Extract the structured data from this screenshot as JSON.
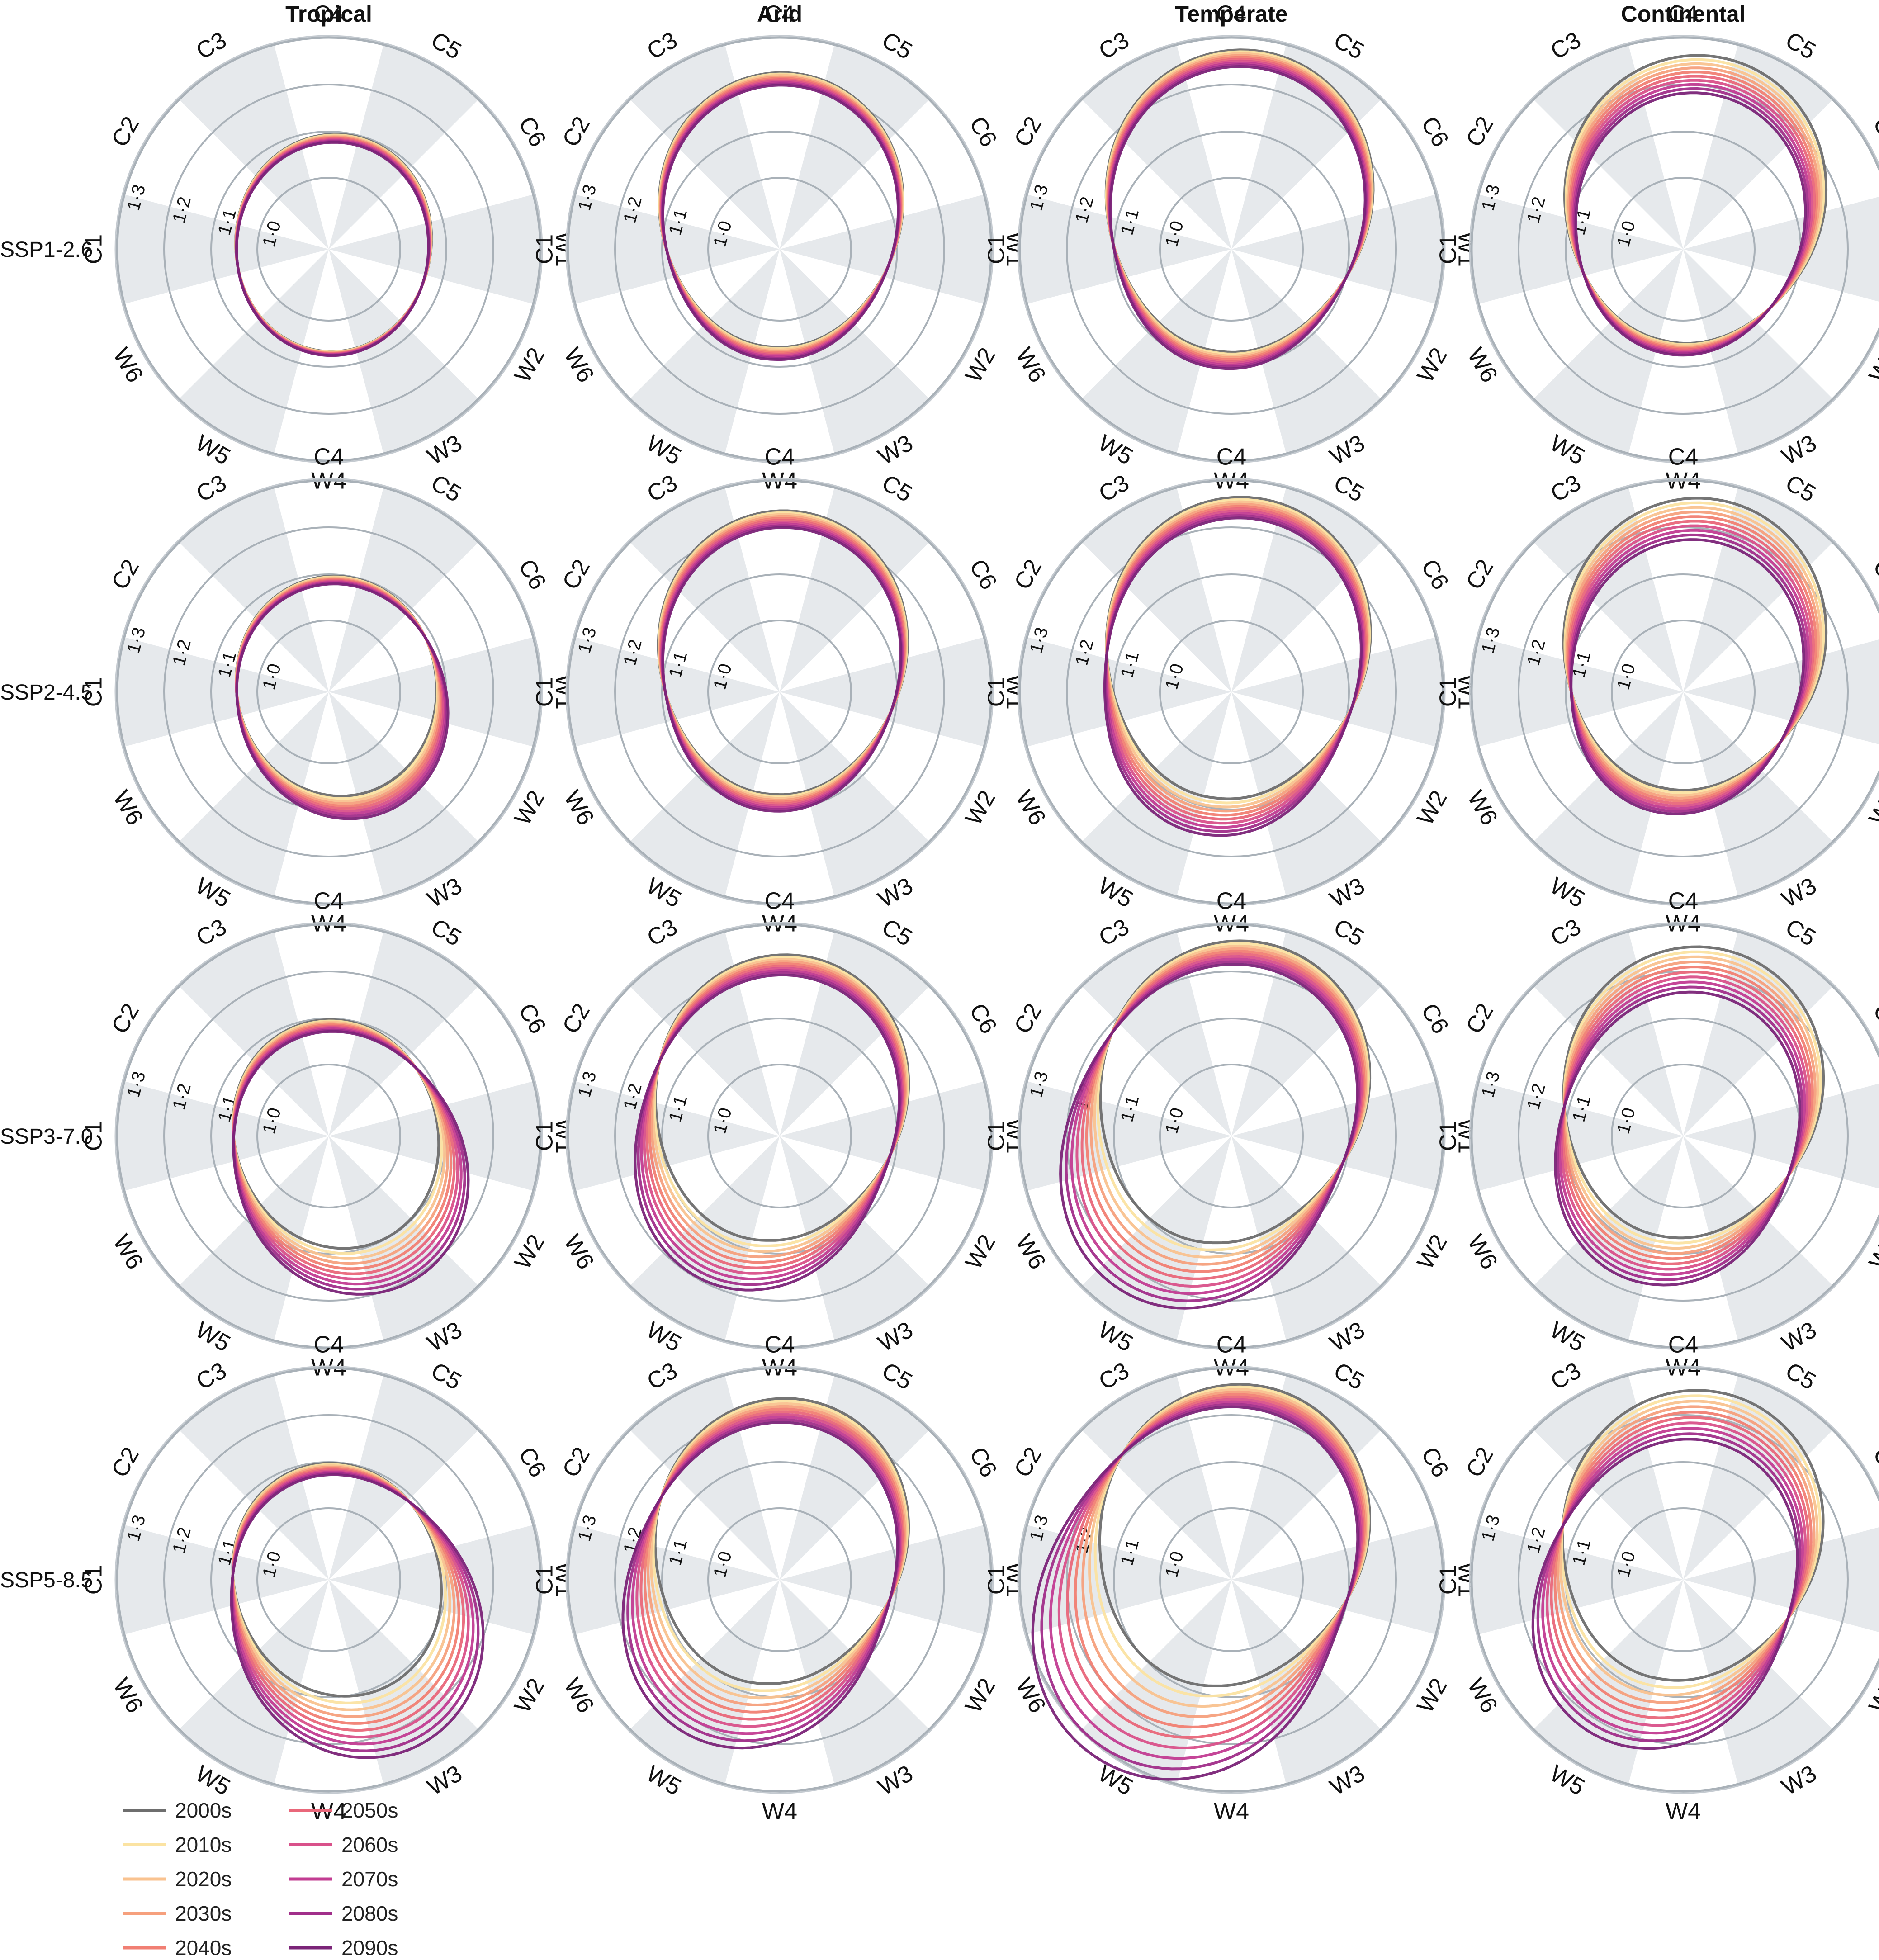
{
  "chart_data": {
    "type": "radar",
    "description_axis": "Cold (C1–C6) and warm (W1–W6) temperature bins; radial axis = relative risk",
    "col_titles": [
      "Tropical",
      "Arid",
      "Temperate",
      "Continental"
    ],
    "row_titles": [
      "SSP1-2.6",
      "SSP2-4.5",
      "SSP3-7.0",
      "SSP5-8.5"
    ],
    "spokes": [
      "C1",
      "C2",
      "C3",
      "C4",
      "C5",
      "C6",
      "W1",
      "W2",
      "W3",
      "W4",
      "W5",
      "W6"
    ],
    "ring_labels": [
      "1·0",
      "1·1",
      "1·2",
      "1·3"
    ],
    "rlim": [
      0.95,
      1.35
    ],
    "grid": true,
    "decades": [
      "2000s",
      "2010s",
      "2020s",
      "2030s",
      "2040s",
      "2050s",
      "2060s",
      "2070s",
      "2080s",
      "2090s"
    ],
    "colors": [
      "#6e6e6e",
      "#fbe3a2",
      "#f9c28f",
      "#f6a07d",
      "#f17f73",
      "#e9677a",
      "#d9518a",
      "#c23c92",
      "#a12e8a",
      "#7b2478"
    ],
    "legend_position": "bottom-left",
    "panels": [
      {
        "climate": "Tropical",
        "scenario": "SSP1-2.6",
        "shape": {
          "cold_peak": 1.07,
          "warm_peak": 1.04,
          "cold_dir": 75,
          "warm_dir": 275,
          "cold_trend": -0.002,
          "warm_trend": 0.001
        }
      },
      {
        "climate": "Arid",
        "scenario": "SSP1-2.6",
        "shape": {
          "cold_peak": 1.2,
          "warm_peak": 1.03,
          "cold_dir": 88,
          "warm_dir": 265,
          "cold_trend": -0.003,
          "warm_trend": 0.003
        }
      },
      {
        "climate": "Temperate",
        "scenario": "SSP1-2.6",
        "shape": {
          "cold_peak": 1.25,
          "warm_peak": 1.04,
          "cold_dir": 82,
          "warm_dir": 262,
          "cold_trend": -0.004,
          "warm_trend": 0.004
        }
      },
      {
        "climate": "Continental",
        "scenario": "SSP1-2.6",
        "shape": {
          "cold_peak": 1.24,
          "warm_peak": 1.02,
          "cold_dir": 78,
          "warm_dir": 262,
          "cold_trend": -0.009,
          "warm_trend": 0.003
        }
      },
      {
        "climate": "Tropical",
        "scenario": "SSP2-4.5",
        "shape": {
          "cold_peak": 1.07,
          "warm_peak": 1.05,
          "cold_dir": 80,
          "warm_dir": 300,
          "cold_trend": -0.002,
          "warm_trend": 0.006
        }
      },
      {
        "climate": "Arid",
        "scenario": "SSP2-4.5",
        "shape": {
          "cold_peak": 1.21,
          "warm_peak": 1.04,
          "cold_dir": 86,
          "warm_dir": 265,
          "cold_trend": -0.004,
          "warm_trend": 0.004
        }
      },
      {
        "climate": "Temperate",
        "scenario": "SSP2-4.5",
        "shape": {
          "cold_peak": 1.24,
          "warm_peak": 1.05,
          "cold_dir": 82,
          "warm_dir": 255,
          "cold_trend": -0.005,
          "warm_trend": 0.009
        }
      },
      {
        "climate": "Continental",
        "scenario": "SSP2-4.5",
        "shape": {
          "cold_peak": 1.24,
          "warm_peak": 1.03,
          "cold_dir": 78,
          "warm_dir": 255,
          "cold_trend": -0.01,
          "warm_trend": 0.006
        }
      },
      {
        "climate": "Tropical",
        "scenario": "SSP3-7.0",
        "shape": {
          "cold_peak": 1.07,
          "warm_peak": 1.07,
          "cold_dir": 90,
          "warm_dir": 300,
          "cold_trend": -0.003,
          "warm_trend": 0.012
        }
      },
      {
        "climate": "Arid",
        "scenario": "SSP3-7.0",
        "shape": {
          "cold_peak": 1.21,
          "warm_peak": 1.05,
          "cold_dir": 84,
          "warm_dir": 240,
          "cold_trend": -0.005,
          "warm_trend": 0.013
        }
      },
      {
        "climate": "Temperate",
        "scenario": "SSP3-7.0",
        "shape": {
          "cold_peak": 1.24,
          "warm_peak": 1.06,
          "cold_dir": 82,
          "warm_dir": 232,
          "cold_trend": -0.006,
          "warm_trend": 0.018
        }
      },
      {
        "climate": "Continental",
        "scenario": "SSP3-7.0",
        "shape": {
          "cold_peak": 1.23,
          "warm_peak": 1.04,
          "cold_dir": 78,
          "warm_dir": 248,
          "cold_trend": -0.011,
          "warm_trend": 0.012
        }
      },
      {
        "climate": "Tropical",
        "scenario": "SSP5-8.5",
        "shape": {
          "cold_peak": 1.07,
          "warm_peak": 1.08,
          "cold_dir": 90,
          "warm_dir": 300,
          "cold_trend": -0.003,
          "warm_trend": 0.016
        }
      },
      {
        "climate": "Arid",
        "scenario": "SSP5-8.5",
        "shape": {
          "cold_peak": 1.21,
          "warm_peak": 1.05,
          "cold_dir": 84,
          "warm_dir": 238,
          "cold_trend": -0.006,
          "warm_trend": 0.017
        }
      },
      {
        "climate": "Temperate",
        "scenario": "SSP5-8.5",
        "shape": {
          "cold_peak": 1.24,
          "warm_peak": 1.06,
          "cold_dir": 82,
          "warm_dir": 230,
          "cold_trend": -0.006,
          "warm_trend": 0.026
        }
      },
      {
        "climate": "Continental",
        "scenario": "SSP5-8.5",
        "shape": {
          "cold_peak": 1.23,
          "warm_peak": 1.04,
          "cold_dir": 78,
          "warm_dir": 240,
          "cold_trend": -0.012,
          "warm_trend": 0.018
        }
      }
    ]
  }
}
